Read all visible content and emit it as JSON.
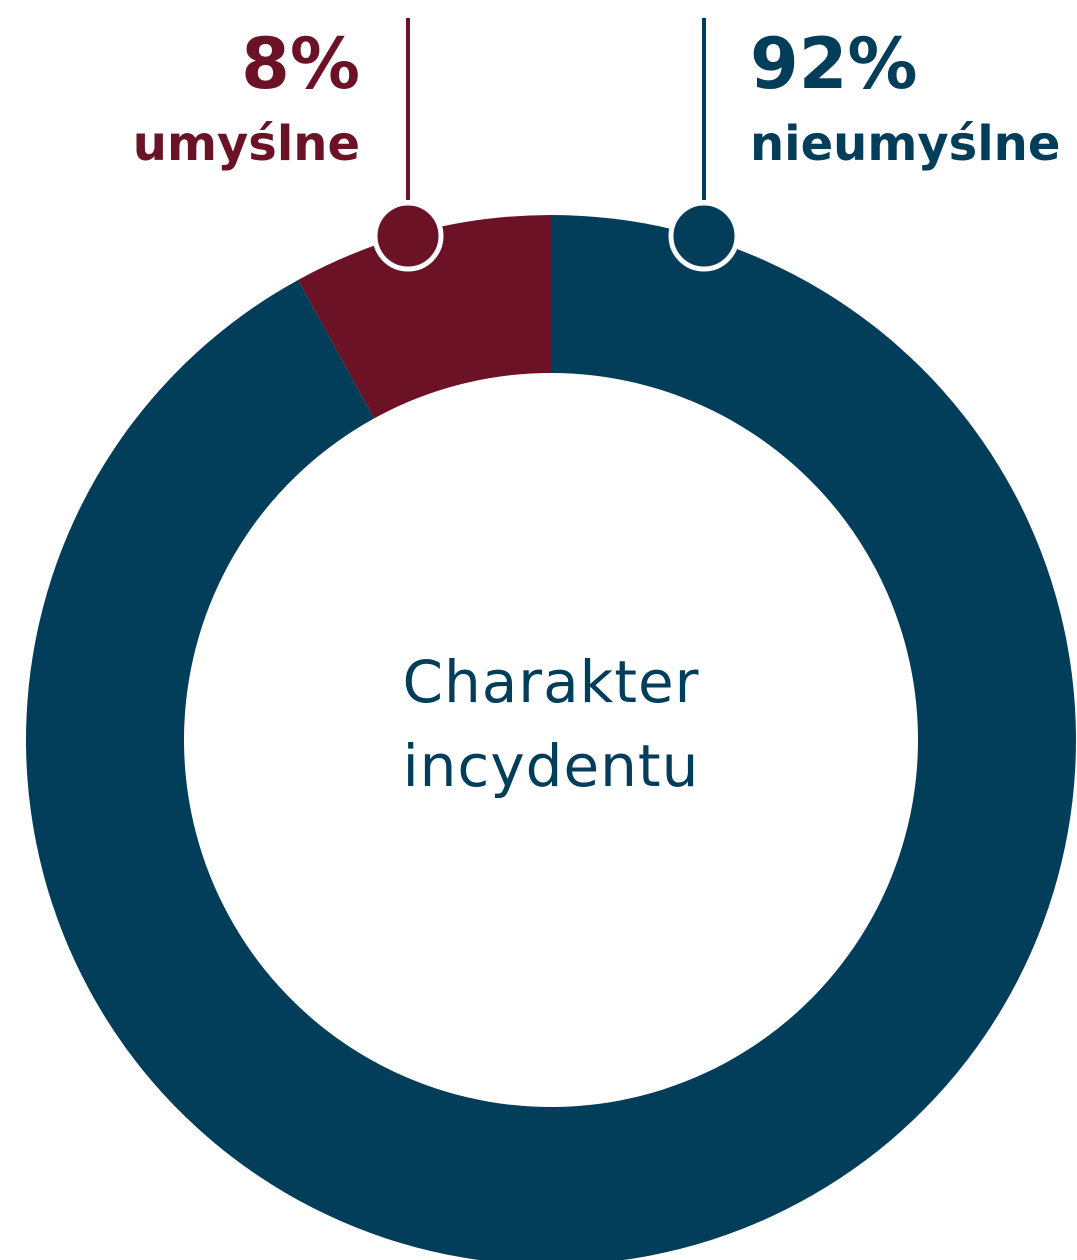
{
  "chart_data": {
    "type": "donut",
    "title": "Charakter incydentu",
    "categories": [
      "nieumyślne",
      "umyślne"
    ],
    "values": [
      92,
      8
    ],
    "value_labels": [
      "92%",
      "8%"
    ],
    "colors": [
      "#023d5a",
      "#6b1226"
    ]
  }
}
